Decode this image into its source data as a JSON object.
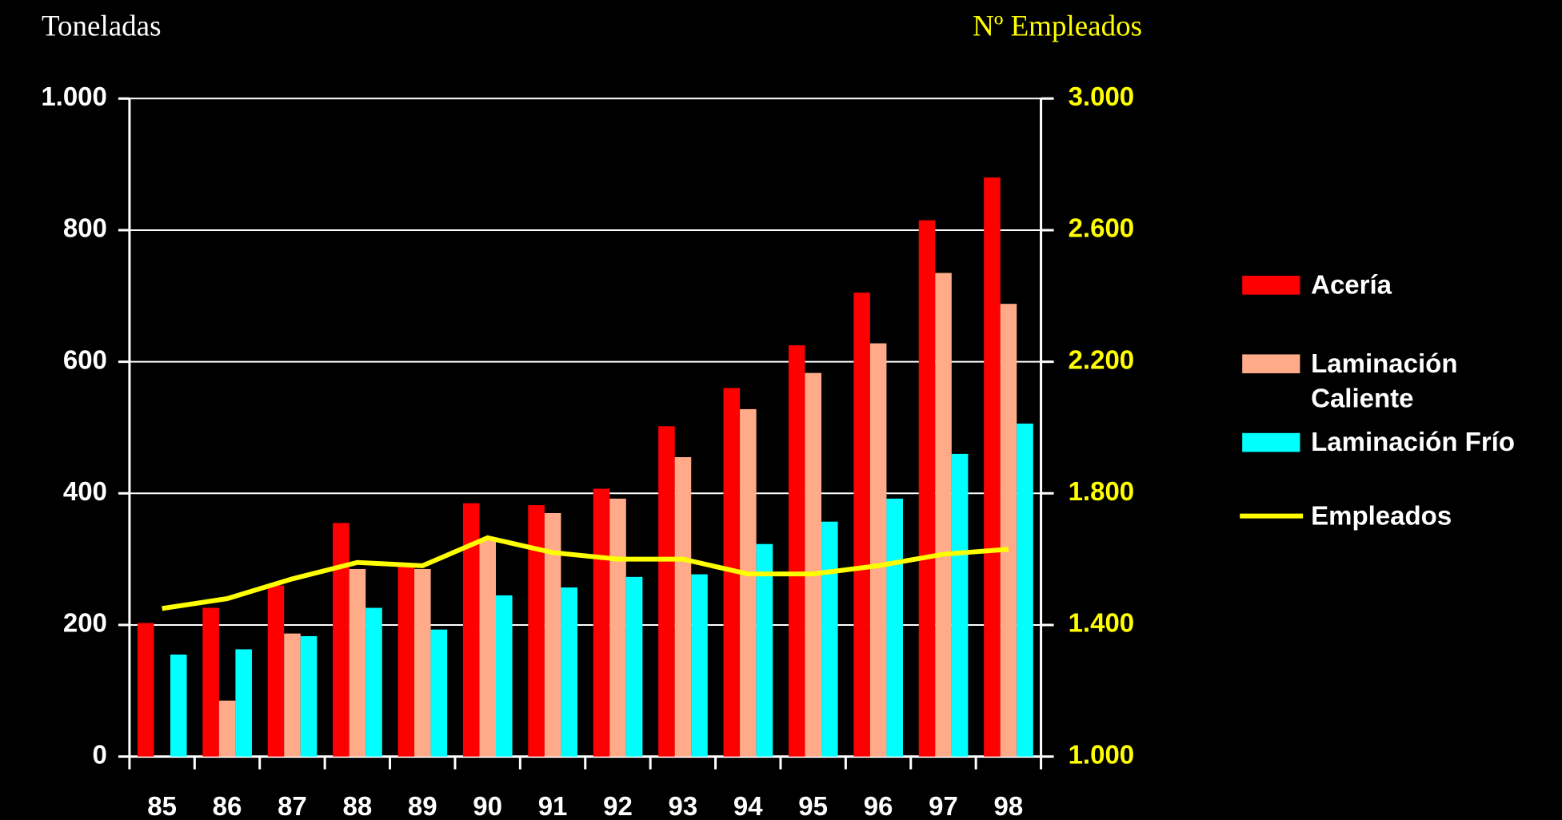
{
  "chart_data": {
    "type": "bar",
    "y_label": "Toneladas",
    "y2_label": "Nº Empleados",
    "categories": [
      "85",
      "86",
      "87",
      "88",
      "89",
      "90",
      "91",
      "92",
      "93",
      "94",
      "95",
      "96",
      "97",
      "98"
    ],
    "series": [
      {
        "name": "Acería",
        "color": "#ff0000",
        "values": [
          203,
          226,
          260,
          355,
          290,
          385,
          382,
          407,
          502,
          560,
          625,
          705,
          815,
          880
        ]
      },
      {
        "name": "Laminación Caliente",
        "color": "#ffaa88",
        "values": [
          0,
          85,
          187,
          285,
          285,
          330,
          370,
          392,
          455,
          528,
          583,
          628,
          735,
          688
        ]
      },
      {
        "name": "Laminación Frío",
        "color": "#00ffff",
        "values": [
          155,
          163,
          183,
          226,
          193,
          245,
          257,
          273,
          277,
          323,
          357,
          392,
          460,
          506
        ]
      },
      {
        "name": "Empleados",
        "type": "line",
        "axis": "y2",
        "color": "#ffff00",
        "values": [
          1450,
          1480,
          1540,
          1590,
          1580,
          1665,
          1620,
          1600,
          1600,
          1555,
          1555,
          1580,
          1615,
          1630
        ]
      }
    ],
    "ylim": [
      0,
      1000
    ],
    "yticks": [
      0,
      200,
      400,
      600,
      800,
      {
        "value": 1000,
        "label": "1.000"
      }
    ],
    "y2lim": [
      1000,
      3000
    ],
    "y2ticks": [
      {
        "value": 1000,
        "label": "1.000"
      },
      {
        "value": 1400,
        "label": "1.400"
      },
      {
        "value": 1800,
        "label": "1.800"
      },
      {
        "value": 2200,
        "label": "2.200"
      },
      {
        "value": 2600,
        "label": "2.600"
      },
      {
        "value": 3000,
        "label": "3.000"
      }
    ],
    "grid": true,
    "legend": "right"
  }
}
